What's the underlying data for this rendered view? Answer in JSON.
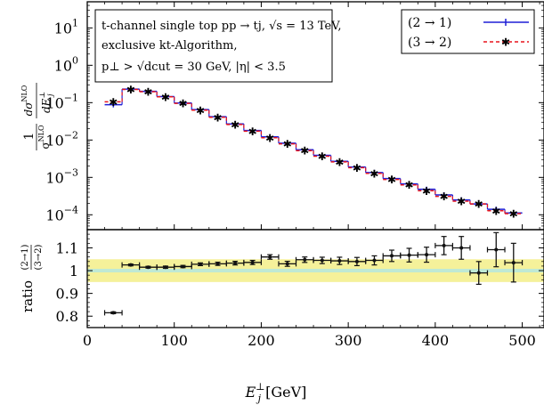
{
  "chart_data": {
    "type": "line",
    "xlabel": "E_j^⊥ [GeV]",
    "xlim": [
      0,
      525
    ],
    "x_ticks": [
      "0",
      "100",
      "200",
      "300",
      "400",
      "500"
    ],
    "annotation": {
      "line1": "t-channel single top  pp → tj,  √s = 13 TeV,",
      "line2": "exclusive kt-Algorithm,",
      "line3": "p⊥ > √dcut = 30 GeV,  |η| < 3.5"
    },
    "panels": [
      {
        "name": "top",
        "ylabel": "1/σNLO dσNLO/dE⊥j",
        "yscale": "log",
        "ylim": [
          4e-05,
          50
        ],
        "y_ticks": [
          {
            "value": 10,
            "label": "10^1"
          },
          {
            "value": 1,
            "label": "10^0"
          },
          {
            "value": 0.1,
            "label": "10^-1"
          },
          {
            "value": 0.01,
            "label": "10^-2"
          },
          {
            "value": 0.001,
            "label": "10^-3"
          },
          {
            "value": 0.0001,
            "label": "10^-4"
          }
        ],
        "legend_position": "top-right",
        "series": [
          {
            "name": "(2 → 1)",
            "color": "#1f1fd6",
            "style": "solid",
            "bin_width": 20,
            "x": [
              30,
              50,
              70,
              90,
              110,
              130,
              150,
              170,
              190,
              210,
              230,
              250,
              270,
              290,
              310,
              330,
              350,
              370,
              390,
              410,
              430,
              450,
              470,
              490
            ],
            "y": [
              0.088,
              0.23,
              0.2,
              0.145,
              0.098,
              0.065,
              0.042,
              0.027,
              0.018,
              0.0122,
              0.0082,
              0.0055,
              0.0039,
              0.0027,
              0.0019,
              0.00135,
              0.00093,
              0.00067,
              0.00048,
              0.00034,
              0.00025,
              0.000195,
              0.00014,
              0.000112
            ]
          },
          {
            "name": "(3 → 2)",
            "color": "#e8141c",
            "style": "dashed",
            "bin_width": 20,
            "x": [
              30,
              50,
              70,
              90,
              110,
              130,
              150,
              170,
              190,
              210,
              230,
              250,
              270,
              290,
              310,
              330,
              350,
              370,
              390,
              410,
              430,
              450,
              470,
              490
            ],
            "y": [
              0.105,
              0.225,
              0.197,
              0.143,
              0.096,
              0.063,
              0.0405,
              0.026,
              0.0173,
              0.0115,
              0.0079,
              0.0052,
              0.0037,
              0.0026,
              0.00182,
              0.00128,
              0.00088,
              0.00063,
              0.00044,
              0.00031,
              0.000232,
              0.000195,
              0.000128,
              0.000107
            ]
          }
        ]
      },
      {
        "name": "ratio",
        "ylabel": "ratio (2→1)/(3→2)",
        "ylim": [
          0.75,
          1.18
        ],
        "y_ticks": [
          "0.8",
          "0.9",
          "1",
          "1.1"
        ],
        "band": {
          "low": 0.95,
          "high": 1.05,
          "color": "#f5f19a",
          "center": 1.0,
          "center_color": "#bfe9d4"
        },
        "series": [
          {
            "name": "",
            "color": "#111111",
            "x": [
              30,
              50,
              70,
              90,
              110,
              130,
              150,
              170,
              190,
              210,
              230,
              250,
              270,
              290,
              310,
              330,
              350,
              370,
              390,
              410,
              430,
              450,
              470,
              490
            ],
            "xerr": 10,
            "y": [
              0.815,
              1.025,
              1.015,
              1.015,
              1.018,
              1.028,
              1.03,
              1.033,
              1.036,
              1.06,
              1.03,
              1.048,
              1.045,
              1.043,
              1.04,
              1.045,
              1.065,
              1.068,
              1.07,
              1.11,
              1.1,
              0.99,
              1.092,
              1.035
            ],
            "yerr": [
              0.004,
              0.004,
              0.004,
              0.005,
              0.005,
              0.006,
              0.007,
              0.008,
              0.009,
              0.01,
              0.011,
              0.012,
              0.014,
              0.016,
              0.018,
              0.02,
              0.025,
              0.03,
              0.033,
              0.04,
              0.05,
              0.05,
              0.075,
              0.085
            ]
          }
        ]
      }
    ]
  }
}
